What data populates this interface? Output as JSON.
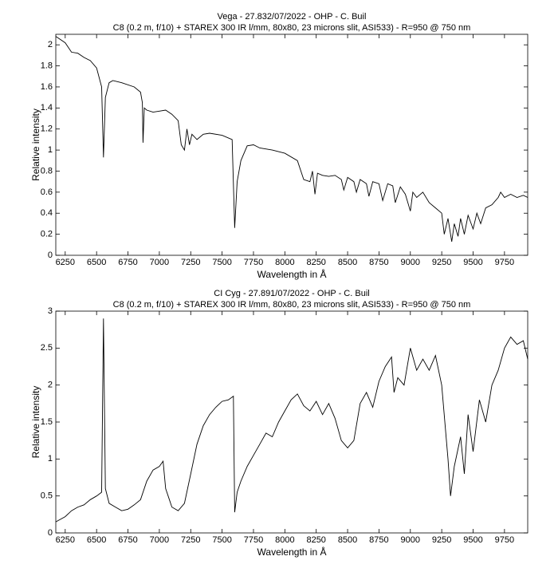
{
  "chart_data": [
    {
      "type": "line",
      "title": "Vega - 27.832/07/2022 - OHP - C. Buil",
      "subtitle": "C8 (0.2 m, f/10) + STAREX 300 IR l/mm, 80x80, 23 microns slit, ASI533) - R=950 @ 750 nm",
      "xlabel": "Wavelength in Å",
      "ylabel": "Relative intensity",
      "xlim": [
        6175,
        9935
      ],
      "ylim": [
        0,
        2.1
      ],
      "xticks": [
        6250,
        6500,
        6750,
        7000,
        7250,
        7500,
        7750,
        8000,
        8250,
        8500,
        8750,
        9000,
        9250,
        9500,
        9750
      ],
      "yticks": [
        0,
        0.2,
        0.4,
        0.6,
        0.8,
        1,
        1.2,
        1.4,
        1.6,
        1.8,
        2
      ],
      "x": [
        6175,
        6250,
        6300,
        6350,
        6400,
        6450,
        6500,
        6540,
        6555,
        6570,
        6600,
        6630,
        6700,
        6800,
        6850,
        6865,
        6870,
        6880,
        6900,
        6950,
        7000,
        7050,
        7100,
        7150,
        7175,
        7200,
        7220,
        7240,
        7260,
        7300,
        7350,
        7400,
        7500,
        7580,
        7600,
        7620,
        7650,
        7700,
        7750,
        7800,
        7900,
        8000,
        8100,
        8150,
        8200,
        8220,
        8240,
        8260,
        8300,
        8350,
        8400,
        8450,
        8470,
        8500,
        8550,
        8570,
        8600,
        8650,
        8670,
        8700,
        8750,
        8780,
        8820,
        8860,
        8880,
        8920,
        8960,
        9000,
        9020,
        9050,
        9100,
        9150,
        9200,
        9250,
        9270,
        9300,
        9330,
        9350,
        9380,
        9400,
        9430,
        9460,
        9500,
        9530,
        9560,
        9600,
        9650,
        9700,
        9720,
        9750,
        9800,
        9850,
        9900,
        9935
      ],
      "series": [
        {
          "color": "#000000",
          "values": [
            2.08,
            2.02,
            1.93,
            1.92,
            1.88,
            1.85,
            1.78,
            1.6,
            0.93,
            1.5,
            1.64,
            1.66,
            1.64,
            1.6,
            1.55,
            1.45,
            1.07,
            1.4,
            1.38,
            1.36,
            1.37,
            1.38,
            1.34,
            1.28,
            1.05,
            1.0,
            1.2,
            1.05,
            1.15,
            1.1,
            1.15,
            1.16,
            1.14,
            1.1,
            0.26,
            0.7,
            0.9,
            1.04,
            1.05,
            1.02,
            1.0,
            0.97,
            0.9,
            0.72,
            0.7,
            0.8,
            0.58,
            0.78,
            0.76,
            0.75,
            0.76,
            0.72,
            0.62,
            0.74,
            0.7,
            0.6,
            0.72,
            0.68,
            0.56,
            0.7,
            0.68,
            0.52,
            0.68,
            0.66,
            0.5,
            0.65,
            0.58,
            0.42,
            0.6,
            0.55,
            0.6,
            0.5,
            0.45,
            0.4,
            0.2,
            0.35,
            0.13,
            0.3,
            0.18,
            0.35,
            0.2,
            0.38,
            0.25,
            0.4,
            0.3,
            0.45,
            0.48,
            0.55,
            0.6,
            0.55,
            0.58,
            0.55,
            0.57,
            0.55
          ]
        }
      ]
    },
    {
      "type": "line",
      "title": "CI Cyg - 27.891/07/2022 - OHP - C. Buil",
      "subtitle": "C8 (0.2 m, f/10) + STAREX 300 IR l/mm, 80x80, 23 microns slit, ASI533) - R=950 @ 750 nm",
      "xlabel": "Wavelength in Å",
      "ylabel": "Relative intensity",
      "xlim": [
        6175,
        9935
      ],
      "ylim": [
        0,
        3
      ],
      "xticks": [
        6250,
        6500,
        6750,
        7000,
        7250,
        7500,
        7750,
        8000,
        8250,
        8500,
        8750,
        9000,
        9250,
        9500,
        9750
      ],
      "yticks": [
        0,
        0.5,
        1,
        1.5,
        2,
        2.5,
        3
      ],
      "x": [
        6175,
        6250,
        6300,
        6350,
        6400,
        6450,
        6500,
        6540,
        6555,
        6570,
        6600,
        6650,
        6700,
        6750,
        6800,
        6850,
        6900,
        6950,
        7000,
        7030,
        7050,
        7080,
        7100,
        7150,
        7200,
        7250,
        7300,
        7350,
        7400,
        7450,
        7500,
        7550,
        7590,
        7600,
        7620,
        7650,
        7700,
        7750,
        7800,
        7850,
        7900,
        7950,
        8000,
        8050,
        8100,
        8150,
        8200,
        8250,
        8300,
        8350,
        8400,
        8450,
        8500,
        8550,
        8600,
        8650,
        8700,
        8750,
        8800,
        8850,
        8870,
        8900,
        8950,
        9000,
        9050,
        9100,
        9150,
        9200,
        9250,
        9300,
        9320,
        9350,
        9400,
        9430,
        9460,
        9500,
        9550,
        9600,
        9650,
        9700,
        9750,
        9800,
        9850,
        9900,
        9935
      ],
      "series": [
        {
          "color": "#000000",
          "values": [
            0.15,
            0.22,
            0.3,
            0.35,
            0.38,
            0.45,
            0.5,
            0.55,
            2.9,
            0.6,
            0.4,
            0.35,
            0.3,
            0.32,
            0.38,
            0.45,
            0.7,
            0.85,
            0.9,
            0.97,
            0.6,
            0.45,
            0.35,
            0.3,
            0.4,
            0.8,
            1.2,
            1.45,
            1.6,
            1.7,
            1.78,
            1.8,
            1.85,
            0.28,
            0.55,
            0.7,
            0.9,
            1.05,
            1.2,
            1.35,
            1.3,
            1.5,
            1.65,
            1.8,
            1.88,
            1.72,
            1.65,
            1.78,
            1.6,
            1.75,
            1.55,
            1.25,
            1.15,
            1.25,
            1.75,
            1.9,
            1.7,
            2.05,
            2.25,
            2.38,
            1.9,
            2.1,
            2.0,
            2.5,
            2.2,
            2.35,
            2.2,
            2.4,
            2.0,
            1.0,
            0.5,
            0.9,
            1.3,
            0.8,
            1.6,
            1.1,
            1.8,
            1.5,
            2.0,
            2.2,
            2.5,
            2.65,
            2.55,
            2.6,
            2.35
          ]
        }
      ]
    }
  ]
}
